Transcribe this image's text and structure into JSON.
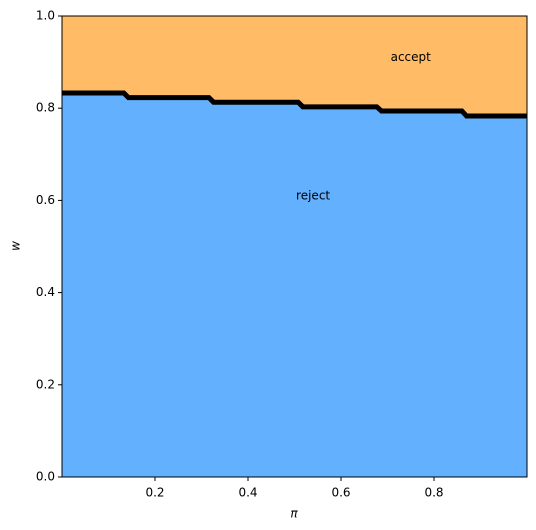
{
  "chart_data": {
    "type": "area",
    "xlabel": "π",
    "ylabel": "w",
    "x": [
      0,
      0.133,
      0.143,
      0.316,
      0.326,
      0.508,
      0.518,
      0.677,
      0.687,
      0.86,
      0.87,
      1.0
    ],
    "values": [
      0.833,
      0.833,
      0.823,
      0.823,
      0.813,
      0.813,
      0.803,
      0.803,
      0.794,
      0.794,
      0.783,
      0.783
    ],
    "below_color": "#63b0ff",
    "above_color": "#ffbb66",
    "line_color": "#000000",
    "annotations": [
      {
        "text": "accept",
        "x": 0.75,
        "y": 0.91
      },
      {
        "text": "reject",
        "x": 0.54,
        "y": 0.61
      }
    ],
    "xlim": [
      0,
      1
    ],
    "xticks": [
      0.2,
      0.4,
      0.6,
      0.8
    ],
    "ylim": [
      0,
      1
    ],
    "yticks": [
      {
        "value": 0,
        "label": "0.0"
      },
      0.2,
      0.4,
      0.6,
      0.8,
      {
        "value": 1,
        "label": "1.0"
      }
    ],
    "grid": false
  }
}
